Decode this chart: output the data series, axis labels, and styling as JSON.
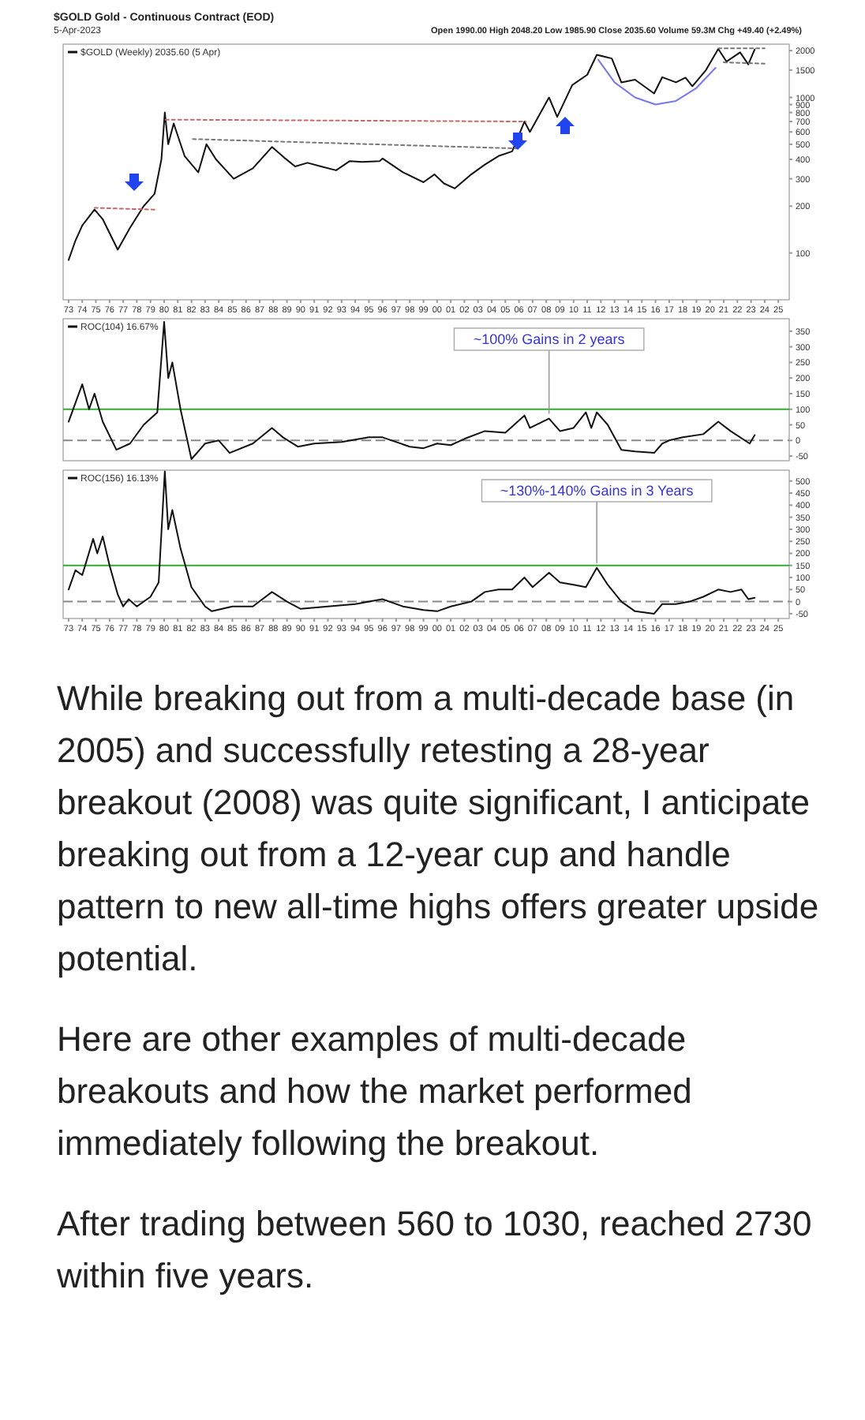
{
  "chart_data": [
    {
      "type": "line",
      "title": "$GOLD Gold - Continuous Contract (EOD)",
      "subtitle": "5-Apr-2023",
      "annotations": [
        "Open 1990.00 High 2048.20 Low 1985.90 Close 2035.60 Volume 59.3M Chg +49.40 (+2.49%)"
      ],
      "log": "y",
      "legend": "top left",
      "tick_labels": "xy",
      "xlim": [
        1972.6,
        2025.8
      ],
      "ylim": [
        50,
        2200
      ],
      "xticks": [
        {
          "value": 1973,
          "label": "73"
        },
        {
          "value": 1974,
          "label": "74"
        },
        {
          "value": 1975,
          "label": "75"
        },
        {
          "value": 1976,
          "label": "76"
        },
        {
          "value": 1977,
          "label": "77"
        },
        {
          "value": 1978,
          "label": "78"
        },
        {
          "value": 1979,
          "label": "79"
        },
        {
          "value": 1980,
          "label": "80"
        },
        {
          "value": 1981,
          "label": "81"
        },
        {
          "value": 1982,
          "label": "82"
        },
        {
          "value": 1983,
          "label": "83"
        },
        {
          "value": 1984,
          "label": "84"
        },
        {
          "value": 1985,
          "label": "85"
        },
        {
          "value": 1986,
          "label": "86"
        },
        {
          "value": 1987,
          "label": "87"
        },
        {
          "value": 1988,
          "label": "88"
        },
        {
          "value": 1989,
          "label": "89"
        },
        {
          "value": 1990,
          "label": "90"
        },
        {
          "value": 1991,
          "label": "91"
        },
        {
          "value": 1992,
          "label": "92"
        },
        {
          "value": 1993,
          "label": "93"
        },
        {
          "value": 1994,
          "label": "94"
        },
        {
          "value": 1995,
          "label": "95"
        },
        {
          "value": 1996,
          "label": "96"
        },
        {
          "value": 1997,
          "label": "97"
        },
        {
          "value": 1998,
          "label": "98"
        },
        {
          "value": 1999,
          "label": "99"
        },
        {
          "value": 2000,
          "label": "00"
        },
        {
          "value": 2001,
          "label": "01"
        },
        {
          "value": 2002,
          "label": "02"
        },
        {
          "value": 2003,
          "label": "03"
        },
        {
          "value": 2004,
          "label": "04"
        },
        {
          "value": 2005,
          "label": "05"
        },
        {
          "value": 2006,
          "label": "06"
        },
        {
          "value": 2007,
          "label": "07"
        },
        {
          "value": 2008,
          "label": "08"
        },
        {
          "value": 2009,
          "label": "09"
        },
        {
          "value": 2010,
          "label": "10"
        },
        {
          "value": 2011,
          "label": "11"
        },
        {
          "value": 2012,
          "label": "12"
        },
        {
          "value": 2013,
          "label": "13"
        },
        {
          "value": 2014,
          "label": "14"
        },
        {
          "value": 2015,
          "label": "15"
        },
        {
          "value": 2016,
          "label": "16"
        },
        {
          "value": 2017,
          "label": "17"
        },
        {
          "value": 2018,
          "label": "18"
        },
        {
          "value": 2019,
          "label": "19"
        },
        {
          "value": 2020,
          "label": "20"
        },
        {
          "value": 2021,
          "label": "21"
        },
        {
          "value": 2022,
          "label": "22"
        },
        {
          "value": 2023,
          "label": "23"
        },
        {
          "value": 2024,
          "label": "24"
        },
        {
          "value": 2025,
          "label": "25"
        }
      ],
      "yticks": [
        100,
        200,
        300,
        400,
        500,
        600,
        700,
        800,
        900,
        1000,
        1500,
        2000
      ],
      "series": [
        {
          "name": "$GOLD (Weekly) 2035.60 (5 Apr)",
          "color": "#111111",
          "x": [
            1973.0,
            1973.5,
            1974.0,
            1974.9,
            1975.5,
            1976.6,
            1977.5,
            1978.5,
            1979.3,
            1979.8,
            1980.05,
            1980.3,
            1980.7,
            1981.5,
            1982.5,
            1983.1,
            1983.8,
            1985.1,
            1986.5,
            1987.9,
            1988.8,
            1989.6,
            1990.5,
            1991.5,
            1992.6,
            1993.6,
            1994.5,
            1995.8,
            1996.0,
            1997.5,
            1999.0,
            1999.8,
            2000.5,
            2001.3,
            2002.5,
            2003.5,
            2004.5,
            2005.5,
            2006.4,
            2006.8,
            2008.2,
            2008.8,
            2009.9,
            2011.0,
            2011.7,
            2012.8,
            2013.5,
            2014.5,
            2015.9,
            2016.5,
            2017.5,
            2018.2,
            2018.7,
            2019.7,
            2020.6,
            2021.2,
            2022.2,
            2022.8,
            2023.27
          ],
          "values": [
            90,
            120,
            150,
            190,
            165,
            105,
            145,
            200,
            240,
            400,
            800,
            500,
            680,
            420,
            330,
            500,
            400,
            300,
            350,
            480,
            410,
            360,
            380,
            360,
            340,
            390,
            385,
            390,
            405,
            330,
            285,
            320,
            280,
            260,
            320,
            370,
            420,
            450,
            700,
            600,
            1000,
            750,
            1200,
            1400,
            1880,
            1780,
            1250,
            1300,
            1060,
            1350,
            1250,
            1340,
            1180,
            1500,
            2050,
            1700,
            1950,
            1630,
            2035.6
          ]
        },
        {
          "color": "#cc6666",
          "line_style": "dotted",
          "x": [
            1974.9,
            1979.3
          ],
          "values": [
            195,
            190
          ]
        },
        {
          "color": "#cc6666",
          "line_style": "dotted",
          "x": [
            1980.1,
            2006.5
          ],
          "values": [
            720,
            700
          ]
        },
        {
          "color": "#777777",
          "line_style": "dotted",
          "x": [
            1982.1,
            2005.8
          ],
          "values": [
            540,
            470
          ]
        },
        {
          "color": "#777777",
          "line_style": "dotted",
          "x": [
            2020.6,
            2024.0
          ],
          "values": [
            2070,
            2070
          ]
        },
        {
          "color": "#777777",
          "line_style": "dotted",
          "x": [
            2021.0,
            2024.0
          ],
          "values": [
            1680,
            1650
          ]
        },
        {
          "color": "#7777ee",
          "x": [
            2011.8,
            2013.0,
            2014.5,
            2016.0,
            2017.5,
            2019.0,
            2020.4
          ],
          "values": [
            1750,
            1250,
            1000,
            900,
            950,
            1150,
            1550
          ]
        }
      ]
    },
    {
      "type": "line",
      "legend": "top left",
      "tick_labels": "y",
      "xlim": [
        1972.6,
        2025.8
      ],
      "ylim": [
        -65,
        390
      ],
      "yticks": [
        -50,
        0,
        50,
        100,
        150,
        200,
        250,
        300,
        350
      ],
      "annotations": [
        {
          "text": "~100% Gains in 2 years",
          "x": 2008.2,
          "y": 70
        }
      ],
      "ref_lines": [
        {
          "axis": "y",
          "value": 100,
          "color": "#33aa33"
        },
        {
          "axis": "y",
          "value": 0,
          "color": "#888888",
          "line_style": "dashed"
        }
      ],
      "series": [
        {
          "name": "ROC(104) 16.67%",
          "color": "#111111",
          "x": [
            1973,
            1974,
            1974.5,
            1974.9,
            1975.5,
            1976.5,
            1977.5,
            1978.5,
            1979.5,
            1980.0,
            1980.3,
            1980.6,
            1981.2,
            1982.0,
            1983.0,
            1984.0,
            1984.8,
            1986.5,
            1987.9,
            1988.7,
            1989.8,
            1991,
            1993,
            1995,
            1996,
            1998,
            1999,
            2000,
            2001,
            2002,
            2003.5,
            2005,
            2006.4,
            2006.8,
            2008.2,
            2009,
            2010,
            2010.9,
            2011.3,
            2011.7,
            2012.5,
            2013.5,
            2014.5,
            2015.9,
            2016.5,
            2017,
            2018,
            2019.5,
            2020.6,
            2021.5,
            2022.9,
            2023.27
          ],
          "values": [
            60,
            180,
            100,
            150,
            60,
            -30,
            -10,
            50,
            90,
            380,
            200,
            250,
            100,
            -60,
            -10,
            0,
            -40,
            -10,
            40,
            10,
            -20,
            -10,
            -5,
            10,
            10,
            -20,
            -25,
            -10,
            -15,
            5,
            30,
            25,
            80,
            40,
            70,
            30,
            40,
            90,
            40,
            90,
            50,
            -30,
            -35,
            -40,
            -10,
            0,
            10,
            20,
            60,
            30,
            -10,
            17
          ]
        }
      ]
    },
    {
      "type": "line",
      "legend": "top left",
      "tick_labels": "xy",
      "xlim": [
        1972.6,
        2025.8
      ],
      "ylim": [
        -70,
        545
      ],
      "yticks": [
        -50,
        0,
        50,
        100,
        150,
        200,
        250,
        300,
        350,
        400,
        450,
        500
      ],
      "xticks": [
        {
          "value": 1973,
          "label": "73"
        },
        {
          "value": 1974,
          "label": "74"
        },
        {
          "value": 1975,
          "label": "75"
        },
        {
          "value": 1976,
          "label": "76"
        },
        {
          "value": 1977,
          "label": "77"
        },
        {
          "value": 1978,
          "label": "78"
        },
        {
          "value": 1979,
          "label": "79"
        },
        {
          "value": 1980,
          "label": "80"
        },
        {
          "value": 1981,
          "label": "81"
        },
        {
          "value": 1982,
          "label": "82"
        },
        {
          "value": 1983,
          "label": "83"
        },
        {
          "value": 1984,
          "label": "84"
        },
        {
          "value": 1985,
          "label": "85"
        },
        {
          "value": 1986,
          "label": "86"
        },
        {
          "value": 1987,
          "label": "87"
        },
        {
          "value": 1988,
          "label": "88"
        },
        {
          "value": 1989,
          "label": "89"
        },
        {
          "value": 1990,
          "label": "90"
        },
        {
          "value": 1991,
          "label": "91"
        },
        {
          "value": 1992,
          "label": "92"
        },
        {
          "value": 1993,
          "label": "93"
        },
        {
          "value": 1994,
          "label": "94"
        },
        {
          "value": 1995,
          "label": "95"
        },
        {
          "value": 1996,
          "label": "96"
        },
        {
          "value": 1997,
          "label": "97"
        },
        {
          "value": 1998,
          "label": "98"
        },
        {
          "value": 1999,
          "label": "99"
        },
        {
          "value": 2000,
          "label": "00"
        },
        {
          "value": 2001,
          "label": "01"
        },
        {
          "value": 2002,
          "label": "02"
        },
        {
          "value": 2003,
          "label": "03"
        },
        {
          "value": 2004,
          "label": "04"
        },
        {
          "value": 2005,
          "label": "05"
        },
        {
          "value": 2006,
          "label": "06"
        },
        {
          "value": 2007,
          "label": "07"
        },
        {
          "value": 2008,
          "label": "08"
        },
        {
          "value": 2009,
          "label": "09"
        },
        {
          "value": 2010,
          "label": "10"
        },
        {
          "value": 2011,
          "label": "11"
        },
        {
          "value": 2012,
          "label": "12"
        },
        {
          "value": 2013,
          "label": "13"
        },
        {
          "value": 2014,
          "label": "14"
        },
        {
          "value": 2015,
          "label": "15"
        },
        {
          "value": 2016,
          "label": "16"
        },
        {
          "value": 2017,
          "label": "17"
        },
        {
          "value": 2018,
          "label": "18"
        },
        {
          "value": 2019,
          "label": "19"
        },
        {
          "value": 2020,
          "label": "20"
        },
        {
          "value": 2021,
          "label": "21"
        },
        {
          "value": 2022,
          "label": "22"
        },
        {
          "value": 2023,
          "label": "23"
        },
        {
          "value": 2024,
          "label": "24"
        },
        {
          "value": 2025,
          "label": "25"
        }
      ],
      "annotations": [
        {
          "text": "~130%-140% Gains in 3 Years",
          "x": 2011.7,
          "y": 140
        }
      ],
      "ref_lines": [
        {
          "axis": "y",
          "value": 150,
          "color": "#33aa33"
        },
        {
          "axis": "y",
          "value": 0,
          "color": "#888888",
          "line_style": "dashed"
        }
      ],
      "series": [
        {
          "name": "ROC(156) 16.13%",
          "color": "#111111",
          "x": [
            1973,
            1973.5,
            1974,
            1974.8,
            1975.1,
            1975.5,
            1976,
            1976.6,
            1977,
            1977.4,
            1978,
            1979,
            1979.6,
            1980.05,
            1980.3,
            1980.6,
            1981.2,
            1982.0,
            1983,
            1983.5,
            1985,
            1986.5,
            1987.9,
            1989,
            1990,
            1992,
            1994,
            1996,
            1997.5,
            1999,
            2000,
            2001,
            2002.5,
            2003.5,
            2004.5,
            2005.5,
            2006.4,
            2007,
            2008.2,
            2009,
            2010,
            2010.9,
            2011.7,
            2012.5,
            2013.5,
            2014.5,
            2015.9,
            2016.5,
            2017.5,
            2018.5,
            2019.5,
            2020.6,
            2021.5,
            2022.3,
            2022.8,
            2023.27
          ],
          "values": [
            50,
            130,
            110,
            260,
            200,
            270,
            150,
            30,
            -20,
            10,
            -20,
            20,
            80,
            540,
            300,
            380,
            220,
            60,
            -20,
            -40,
            -20,
            -20,
            40,
            0,
            -30,
            -20,
            -10,
            10,
            -20,
            -35,
            -40,
            -20,
            0,
            40,
            50,
            50,
            100,
            60,
            120,
            80,
            70,
            60,
            140,
            70,
            0,
            -40,
            -50,
            -10,
            -10,
            0,
            20,
            50,
            40,
            50,
            10,
            16
          ]
        }
      ]
    },
    {
      "type": "other",
      "annotations": [
        "While breaking out from a multi-decade base (in 2005) and successfully retesting a 28-year breakout (2008) was quite significant, I anticipate breaking out from a 12-year cup and handle pattern to new all-time highs offers greater upside potential.",
        "Here are other examples of multi-decade breakouts and how the market performed immediately following the breakout.",
        "After trading between 560 to 1030, reached 2730 within five years."
      ]
    }
  ]
}
